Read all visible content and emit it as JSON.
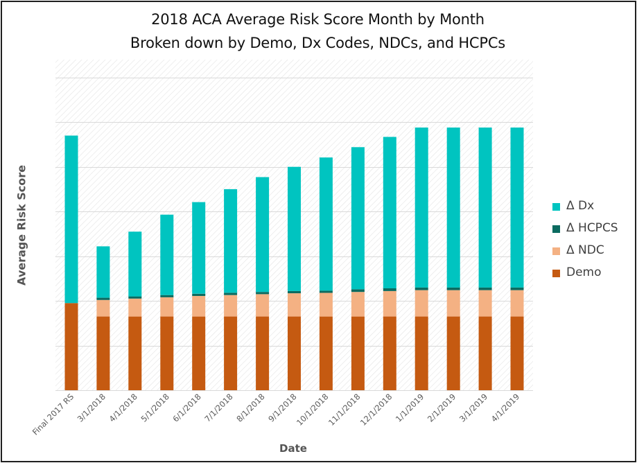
{
  "chart_data": {
    "type": "bar",
    "stacked": true,
    "title": "2018 ACA Average Risk Score Month by Month",
    "subtitle": "Broken down by Demo, Dx Codes, NDCs, and HCPCs",
    "xlabel": "Date",
    "ylabel": "Average Risk Score",
    "y_tick_labels_shown": false,
    "ylim": [
      0,
      7.4
    ],
    "grid": true,
    "legend_position": "right",
    "categories": [
      "Final 2017 RS",
      "3/1/2018",
      "4/1/2018",
      "5/1/2018",
      "6/1/2018",
      "7/1/2018",
      "8/1/2018",
      "9/1/2018",
      "10/1/2018",
      "11/1/2018",
      "12/1/2018",
      "1/1/2019",
      "2/1/2019",
      "3/1/2019",
      "4/1/2019"
    ],
    "series": [
      {
        "name": "Demo",
        "color": "#c55a11",
        "values": [
          1.95,
          1.65,
          1.65,
          1.65,
          1.65,
          1.65,
          1.65,
          1.65,
          1.65,
          1.65,
          1.65,
          1.65,
          1.65,
          1.65,
          1.65
        ]
      },
      {
        "name": "Δ NDC",
        "color": "#f4b183",
        "values": [
          0,
          0.37,
          0.4,
          0.43,
          0.46,
          0.48,
          0.5,
          0.52,
          0.53,
          0.55,
          0.57,
          0.59,
          0.59,
          0.59,
          0.59
        ]
      },
      {
        "name": "Δ HCPCS",
        "color": "#0b6b60",
        "values": [
          0,
          0.05,
          0.05,
          0.05,
          0.05,
          0.05,
          0.05,
          0.05,
          0.05,
          0.06,
          0.06,
          0.06,
          0.06,
          0.06,
          0.06
        ]
      },
      {
        "name": "Δ Dx",
        "color": "#00c4c0",
        "values": [
          3.75,
          1.15,
          1.45,
          1.8,
          2.05,
          2.32,
          2.57,
          2.78,
          2.98,
          3.18,
          3.39,
          3.58,
          3.58,
          3.58,
          3.58
        ]
      }
    ],
    "legend_order": [
      "Δ Dx",
      "Δ HCPCS",
      "Δ NDC",
      "Demo"
    ],
    "gridline_color": "#d9d9d9"
  }
}
